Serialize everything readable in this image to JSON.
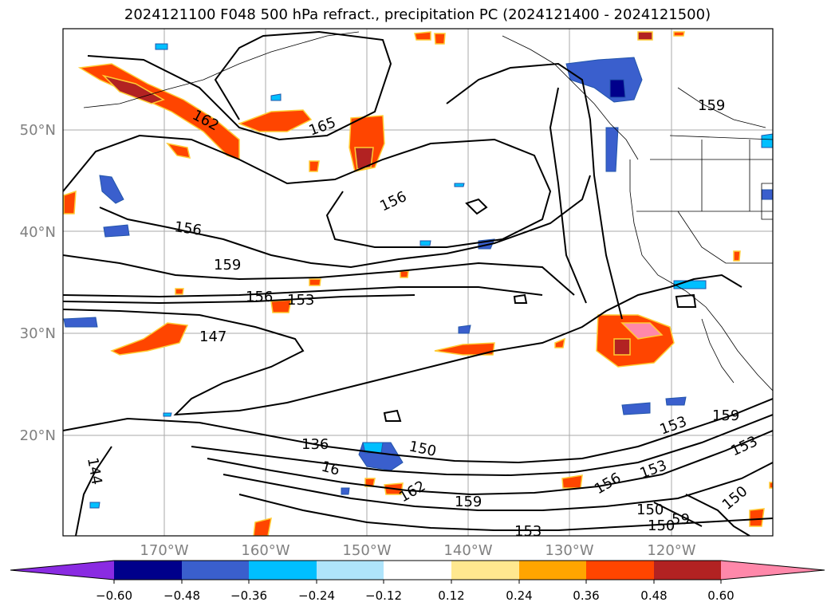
{
  "title": "2024121100 F048 500 hPa refract., precipitation PC (2024121400 - 2024121500)",
  "lat_ticks": [
    "50°N",
    "40°N",
    "30°N",
    "20°N"
  ],
  "lon_ticks": [
    "170°W",
    "160°W",
    "150°W",
    "140°W",
    "130°W",
    "120°W"
  ],
  "contour_labels": [
    "162",
    "165",
    "156",
    "159",
    "156",
    "159",
    "156",
    "153",
    "147",
    "136",
    "150",
    "16",
    "162",
    "159",
    "153",
    "156",
    "153",
    "150",
    "150",
    "59",
    "153",
    "159",
    "153",
    "150",
    "144"
  ],
  "colorbar": {
    "ticks": [
      "−0.60",
      "−0.48",
      "−0.36",
      "−0.24",
      "−0.12",
      "0.12",
      "0.24",
      "0.36",
      "0.48",
      "0.60"
    ],
    "colors": [
      "#8a2be2",
      "#00008b",
      "#3a5fcd",
      "#00bfff",
      "#afe4fb",
      "#ffffff",
      "#ffe88f",
      "#ffa500",
      "#ff4500",
      "#b22222",
      "#ff88aa"
    ]
  }
}
